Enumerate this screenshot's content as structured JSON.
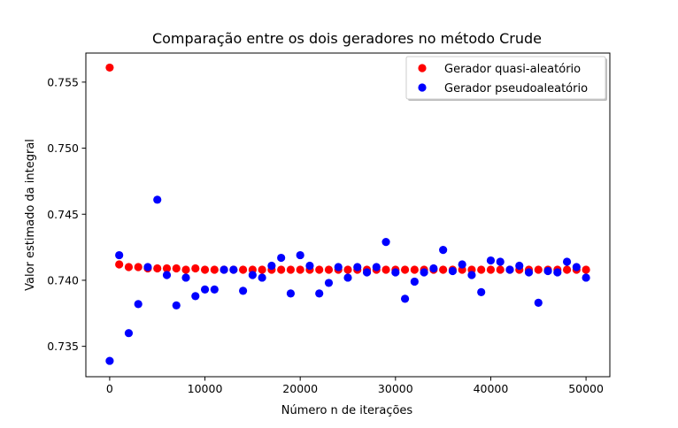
{
  "chart_data": {
    "type": "scatter",
    "title": "Comparação entre os dois geradores no método Crude",
    "xlabel": "Número n de iterações",
    "ylabel": "Valor estimado da integral",
    "xlim": [
      -2500,
      52500
    ],
    "ylim": [
      0.7327,
      0.7572
    ],
    "x_ticks": [
      0,
      10000,
      20000,
      30000,
      40000,
      50000
    ],
    "x_tick_labels": [
      "0",
      "10000",
      "20000",
      "30000",
      "40000",
      "50000"
    ],
    "y_ticks": [
      0.735,
      0.74,
      0.745,
      0.75,
      0.755
    ],
    "y_tick_labels": [
      "0.735",
      "0.740",
      "0.745",
      "0.750",
      "0.755"
    ],
    "grid": false,
    "legend_position": "top-right",
    "series": [
      {
        "name": "Gerador quasi-aleatório",
        "color": "#ff0000",
        "x": [
          0,
          1000,
          2000,
          3000,
          4000,
          5000,
          6000,
          7000,
          8000,
          9000,
          10000,
          11000,
          12000,
          13000,
          14000,
          15000,
          16000,
          17000,
          18000,
          19000,
          20000,
          21000,
          22000,
          23000,
          24000,
          25000,
          26000,
          27000,
          28000,
          29000,
          30000,
          31000,
          32000,
          33000,
          34000,
          35000,
          36000,
          37000,
          38000,
          39000,
          40000,
          41000,
          42000,
          43000,
          44000,
          45000,
          46000,
          47000,
          48000,
          49000,
          50000
        ],
        "y": [
          0.7561,
          0.7412,
          0.741,
          0.741,
          0.7409,
          0.7409,
          0.7409,
          0.7409,
          0.7408,
          0.7409,
          0.7408,
          0.7408,
          0.7408,
          0.7408,
          0.7408,
          0.7408,
          0.7408,
          0.7408,
          0.7408,
          0.7408,
          0.7408,
          0.7408,
          0.7408,
          0.7408,
          0.7408,
          0.7408,
          0.7408,
          0.7408,
          0.7408,
          0.7408,
          0.7408,
          0.7408,
          0.7408,
          0.7408,
          0.7408,
          0.7408,
          0.7408,
          0.7408,
          0.7408,
          0.7408,
          0.7408,
          0.7408,
          0.7408,
          0.7408,
          0.7408,
          0.7408,
          0.7408,
          0.7408,
          0.7408,
          0.7408,
          0.7408
        ]
      },
      {
        "name": "Gerador pseudoaleatório",
        "color": "#0000ff",
        "x": [
          0,
          1000,
          2000,
          3000,
          4000,
          5000,
          6000,
          7000,
          8000,
          9000,
          10000,
          11000,
          12000,
          13000,
          14000,
          15000,
          16000,
          17000,
          18000,
          19000,
          20000,
          21000,
          22000,
          23000,
          24000,
          25000,
          26000,
          27000,
          28000,
          29000,
          30000,
          31000,
          32000,
          33000,
          34000,
          35000,
          36000,
          37000,
          38000,
          39000,
          40000,
          41000,
          42000,
          43000,
          44000,
          45000,
          46000,
          47000,
          48000,
          49000,
          50000
        ],
        "y": [
          0.7339,
          0.7419,
          0.736,
          0.7382,
          0.741,
          0.7461,
          0.7404,
          0.7381,
          0.7402,
          0.7388,
          0.7393,
          0.7393,
          0.7408,
          0.7408,
          0.7392,
          0.7404,
          0.7402,
          0.7411,
          0.7417,
          0.739,
          0.7419,
          0.7411,
          0.739,
          0.7398,
          0.741,
          0.7402,
          0.741,
          0.7406,
          0.741,
          0.7429,
          0.7406,
          0.7386,
          0.7399,
          0.7406,
          0.7409,
          0.7423,
          0.7407,
          0.7412,
          0.7404,
          0.7391,
          0.7415,
          0.7414,
          0.7408,
          0.7411,
          0.7406,
          0.7383,
          0.7407,
          0.7406,
          0.7414,
          0.741,
          0.7402
        ]
      }
    ]
  }
}
